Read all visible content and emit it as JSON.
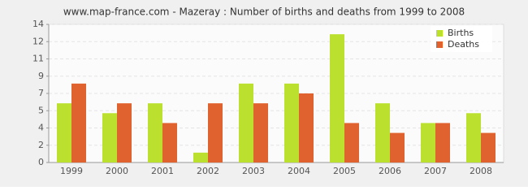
{
  "chart_data": {
    "type": "bar",
    "title": "www.map-france.com - Mazeray : Number of births and deaths from 1999 to 2008",
    "categories": [
      "1999",
      "2000",
      "2001",
      "2002",
      "2003",
      "2004",
      "2005",
      "2006",
      "2007",
      "2008"
    ],
    "series": [
      {
        "name": "Births",
        "color": "#bbe02e",
        "values": [
          6,
          5,
          6,
          1,
          8,
          8,
          13,
          6,
          4,
          5
        ]
      },
      {
        "name": "Deaths",
        "color": "#e0622e",
        "values": [
          8,
          6,
          4,
          6,
          6,
          7,
          4,
          3,
          4,
          3
        ]
      }
    ],
    "ylim": [
      0,
      14
    ],
    "yticks": [
      0,
      {
        "value": 1.75,
        "label": "2"
      },
      {
        "value": 3.5,
        "label": "4"
      },
      {
        "value": 5.25,
        "label": "5"
      },
      7,
      {
        "value": 8.75,
        "label": "9"
      },
      {
        "value": 10.5,
        "label": "11"
      },
      {
        "value": 12.25,
        "label": "12"
      },
      14
    ],
    "grid": true,
    "legend": "top-right"
  }
}
